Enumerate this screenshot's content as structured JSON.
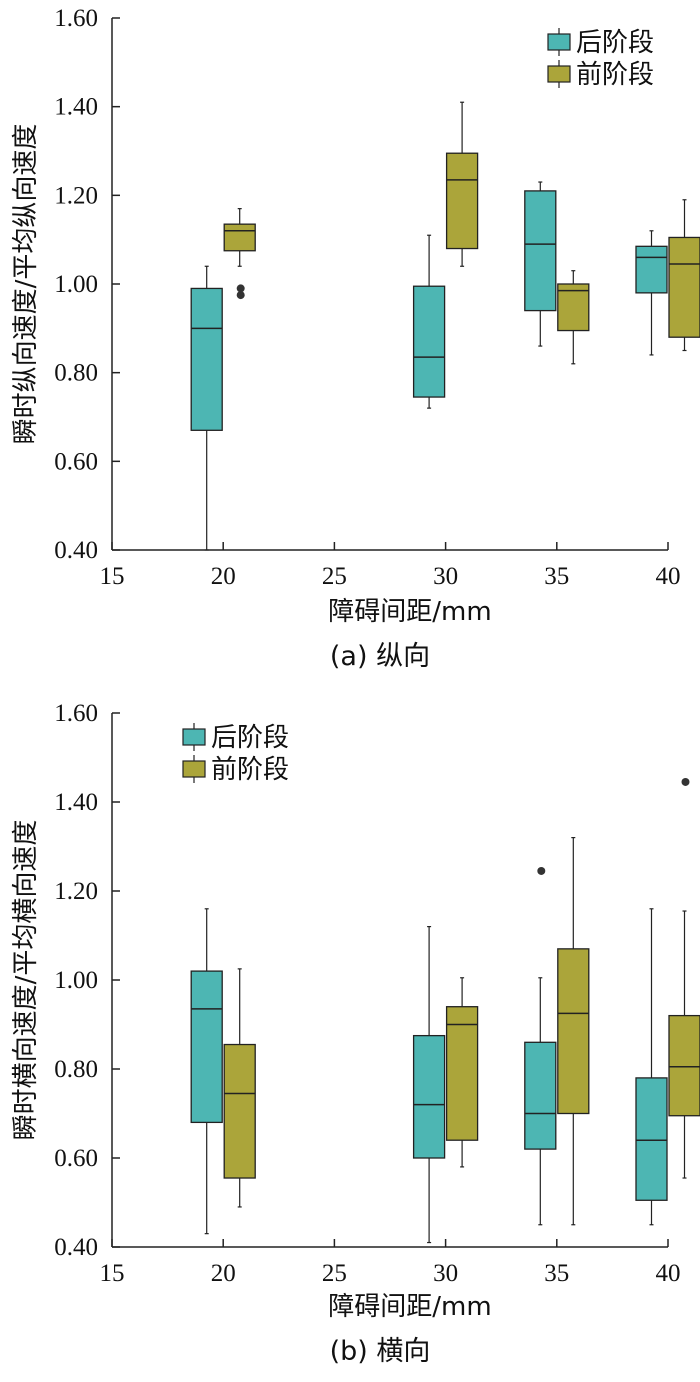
{
  "chart_data": [
    {
      "type": "boxplot",
      "caption": "(a)  纵向",
      "xlabel": "障碍间距/mm",
      "ylabel": "瞬时纵向速度/平均纵向速度",
      "xlim": [
        15,
        40
      ],
      "ylim": [
        0.4,
        1.6
      ],
      "xticks": [
        "15",
        "20",
        "25",
        "30",
        "35",
        "40"
      ],
      "yticks": [
        "0.40",
        "0.60",
        "0.80",
        "1.00",
        "1.20",
        "1.40",
        "1.60"
      ],
      "legend": {
        "position": "top-right",
        "entries": [
          "后阶段",
          "前阶段"
        ]
      },
      "series": [
        {
          "name": "后阶段",
          "color": "#4DB6B3",
          "boxes": [
            {
              "x": 20,
              "whislo": 0.4,
              "q1": 0.67,
              "med": 0.9,
              "q3": 0.99,
              "whishi": 1.04,
              "fliers": []
            },
            {
              "x": 30,
              "whislo": 0.72,
              "q1": 0.745,
              "med": 0.835,
              "q3": 0.995,
              "whishi": 1.11,
              "fliers": []
            },
            {
              "x": 35,
              "whislo": 0.86,
              "q1": 0.94,
              "med": 1.09,
              "q3": 1.21,
              "whishi": 1.23,
              "fliers": []
            },
            {
              "x": 40,
              "whislo": 0.84,
              "q1": 0.98,
              "med": 1.06,
              "q3": 1.085,
              "whishi": 1.12,
              "fliers": []
            }
          ]
        },
        {
          "name": "前阶段",
          "color": "#ABA53A",
          "boxes": [
            {
              "x": 20,
              "whislo": 1.04,
              "q1": 1.075,
              "med": 1.12,
              "q3": 1.135,
              "whishi": 1.17,
              "fliers": [
                0.99,
                0.975
              ]
            },
            {
              "x": 30,
              "whislo": 1.04,
              "q1": 1.08,
              "med": 1.235,
              "q3": 1.295,
              "whishi": 1.41,
              "fliers": []
            },
            {
              "x": 35,
              "whislo": 0.82,
              "q1": 0.895,
              "med": 0.985,
              "q3": 1.0,
              "whishi": 1.03,
              "fliers": []
            },
            {
              "x": 40,
              "whislo": 0.85,
              "q1": 0.88,
              "med": 1.045,
              "q3": 1.105,
              "whishi": 1.19,
              "fliers": []
            }
          ]
        }
      ]
    },
    {
      "type": "boxplot",
      "caption": "(b)  横向",
      "xlabel": "障碍间距/mm",
      "ylabel": "瞬时横向速度/平均横向速度",
      "xlim": [
        15,
        40
      ],
      "ylim": [
        0.4,
        1.6
      ],
      "xticks": [
        "15",
        "20",
        "25",
        "30",
        "35",
        "40"
      ],
      "yticks": [
        "0.40",
        "0.60",
        "0.80",
        "1.00",
        "1.20",
        "1.40",
        "1.60"
      ],
      "legend": {
        "position": "top-left",
        "entries": [
          "后阶段",
          "前阶段"
        ]
      },
      "series": [
        {
          "name": "后阶段",
          "color": "#4DB6B3",
          "boxes": [
            {
              "x": 20,
              "whislo": 0.43,
              "q1": 0.68,
              "med": 0.935,
              "q3": 1.02,
              "whishi": 1.16,
              "fliers": []
            },
            {
              "x": 30,
              "whislo": 0.41,
              "q1": 0.6,
              "med": 0.72,
              "q3": 0.875,
              "whishi": 1.12,
              "fliers": []
            },
            {
              "x": 35,
              "whislo": 0.45,
              "q1": 0.62,
              "med": 0.7,
              "q3": 0.86,
              "whishi": 1.005,
              "fliers": [
                1.245
              ]
            },
            {
              "x": 40,
              "whislo": 0.45,
              "q1": 0.505,
              "med": 0.64,
              "q3": 0.78,
              "whishi": 1.16,
              "fliers": []
            }
          ]
        },
        {
          "name": "前阶段",
          "color": "#ABA53A",
          "boxes": [
            {
              "x": 20,
              "whislo": 0.49,
              "q1": 0.555,
              "med": 0.745,
              "q3": 0.855,
              "whishi": 1.025,
              "fliers": []
            },
            {
              "x": 30,
              "whislo": 0.58,
              "q1": 0.64,
              "med": 0.9,
              "q3": 0.94,
              "whishi": 1.005,
              "fliers": []
            },
            {
              "x": 35,
              "whislo": 0.45,
              "q1": 0.7,
              "med": 0.925,
              "q3": 1.07,
              "whishi": 1.32,
              "fliers": []
            },
            {
              "x": 40,
              "whislo": 0.555,
              "q1": 0.695,
              "med": 0.805,
              "q3": 0.92,
              "whishi": 1.155,
              "fliers": [
                1.445
              ]
            }
          ]
        }
      ]
    }
  ]
}
